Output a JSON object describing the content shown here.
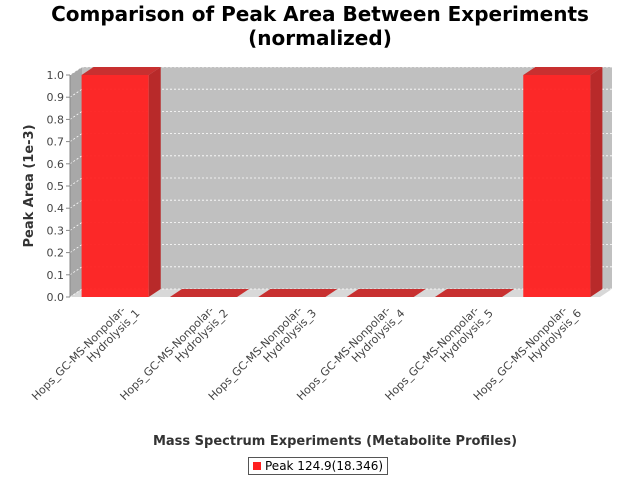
{
  "chart_data": {
    "type": "bar",
    "title_line1": "Comparison of Peak Area Between Experiments",
    "title_line2": "(normalized)",
    "xlabel": "Mass Spectrum Experiments (Metabolite Profiles)",
    "ylabel": "Peak Area (1e-3)",
    "categories": [
      [
        "Hops_GC-MS-Nonpolar-",
        "Hydrolysis_1"
      ],
      [
        "Hops_GC-MS-Nonpolar-",
        "Hydrolysis_2"
      ],
      [
        "Hops_GC-MS-Nonpolar-",
        "Hydrolysis_3"
      ],
      [
        "Hops_GC-MS-Nonpolar-",
        "Hydrolysis_4"
      ],
      [
        "Hops_GC-MS-Nonpolar-",
        "Hydrolysis_5"
      ],
      [
        "Hops_GC-MS-Nonpolar-",
        "Hydrolysis_6"
      ]
    ],
    "series": [
      {
        "name": "Peak 124.9(18.346)",
        "values": [
          1.0,
          0.0,
          0.0,
          0.0,
          0.0,
          1.0
        ]
      }
    ],
    "yticks": [
      "0.0",
      "0.1",
      "0.2",
      "0.3",
      "0.4",
      "0.5",
      "0.6",
      "0.7",
      "0.8",
      "0.9",
      "1.0"
    ],
    "ylim": [
      0,
      1.0
    ],
    "grid": true,
    "legend_position": "bottom",
    "colors": {
      "bar": "#ff2020",
      "bar_side": "#b82a2a",
      "bar_top": "#c83030",
      "plot_bg": "#c0c0c0",
      "wall_side": "#a8a8a8",
      "floor": "#d8d8d8",
      "grid": "#ffffff"
    }
  }
}
